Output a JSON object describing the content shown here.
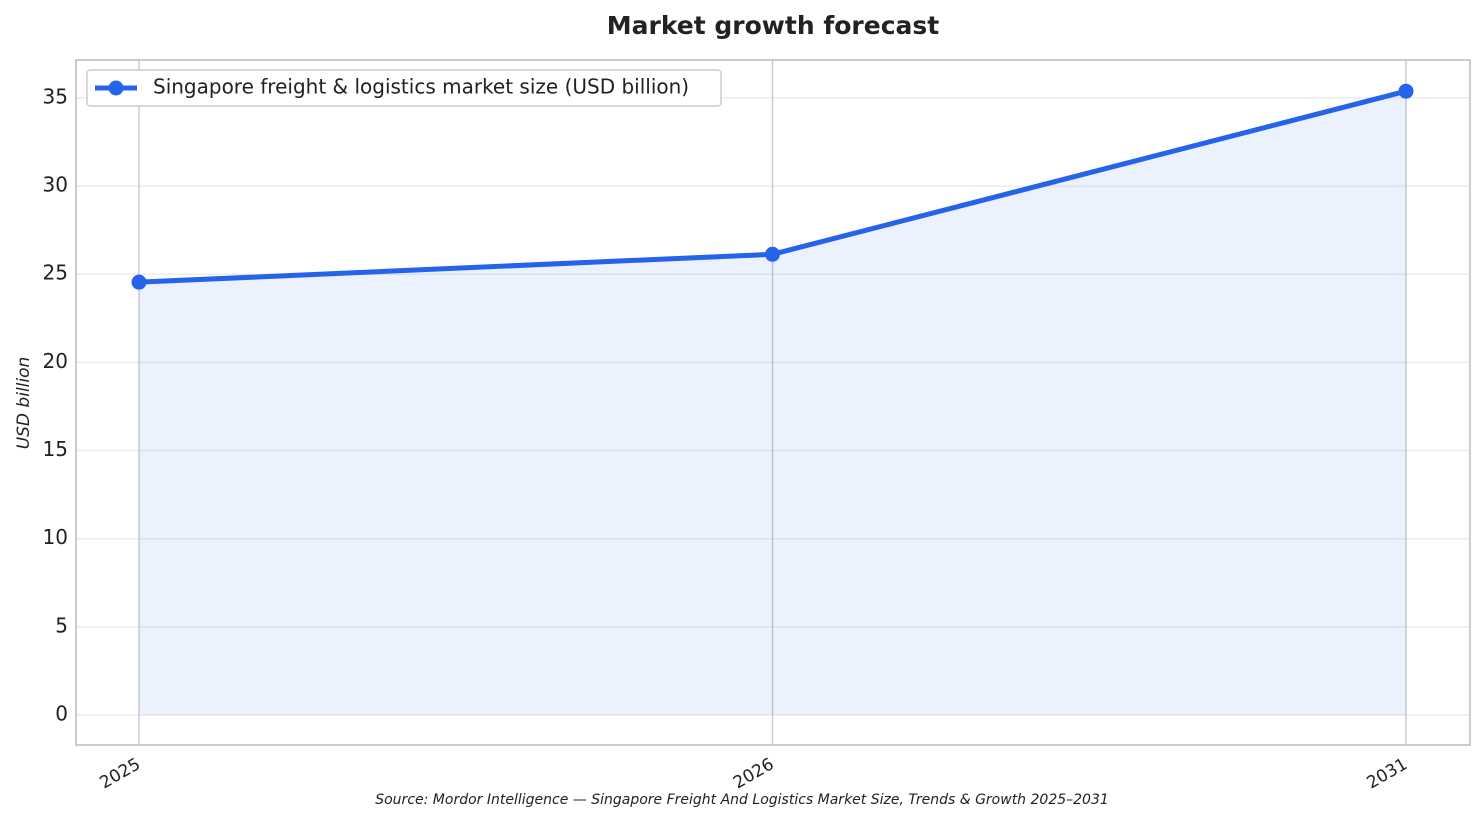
{
  "chart_data": {
    "type": "line",
    "title": "Market growth forecast",
    "y_label": "USD billion",
    "source": "Source: Mordor Intelligence — Singapore Freight And Logistics Market Size, Trends & Growth 2025–2031",
    "categories": [
      "2025",
      "2026",
      "2031"
    ],
    "series": [
      {
        "name": "Singapore freight & logistics market size (USD billion)",
        "color": "#2563eb",
        "values": [
          24.55,
          26.13,
          35.38
        ]
      }
    ],
    "ylim": [
      -1.7,
      37.15
    ],
    "yticks": [
      0,
      5,
      10,
      15,
      20,
      25,
      30,
      35
    ],
    "grid": true,
    "legend": "upper left",
    "area_fill": true
  }
}
